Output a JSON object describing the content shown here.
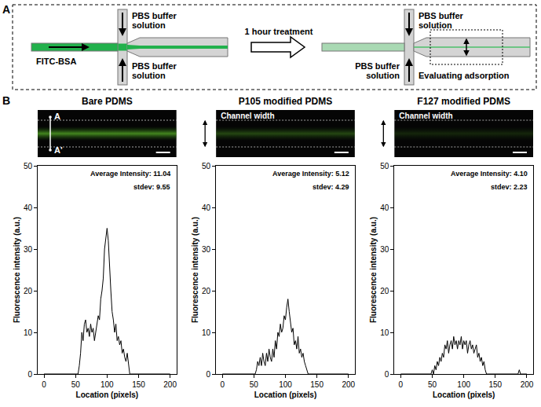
{
  "panel_a": {
    "label": "A",
    "inflow": "FITC-BSA",
    "buffer": "PBS buffer solution",
    "treatment": "1 hour treatment",
    "evaluation": "Evaluating adsorption"
  },
  "panel_b_label": "B",
  "chart_data": [
    {
      "type": "line",
      "title": "Bare PDMS",
      "image_annotations": [
        "A",
        "A'"
      ],
      "x_label": "Location (pixels)",
      "y_label": "Fluorescence intensity (a.u.)",
      "annotations": [
        "Average Intensity: 11.04",
        "stdev: 9.55"
      ],
      "color": "#000000",
      "xlim": [
        -10,
        210
      ],
      "xticks": [
        0,
        50,
        100,
        150,
        200
      ],
      "ylim": [
        0,
        50
      ],
      "yticks": [
        0,
        10,
        20,
        30,
        40,
        50
      ],
      "x": [
        0,
        2,
        4,
        6,
        8,
        10,
        12,
        14,
        16,
        18,
        20,
        22,
        24,
        26,
        28,
        30,
        32,
        34,
        36,
        38,
        40,
        42,
        44,
        46,
        48,
        50,
        52,
        54,
        56,
        58,
        60,
        62,
        64,
        66,
        68,
        70,
        72,
        74,
        76,
        78,
        80,
        82,
        84,
        86,
        88,
        90,
        92,
        94,
        96,
        98,
        100,
        102,
        104,
        106,
        108,
        110,
        112,
        114,
        116,
        118,
        120,
        122,
        124,
        126,
        128,
        130,
        132,
        134,
        136,
        138,
        140,
        142,
        144,
        146,
        148,
        150,
        152,
        154,
        156,
        158,
        160,
        162,
        164,
        166,
        168,
        170,
        172,
        174,
        176,
        178,
        180,
        182,
        184,
        186,
        188,
        190,
        192,
        194,
        196,
        198,
        200
      ],
      "values": [
        0,
        0,
        0,
        0,
        0,
        0,
        0,
        0,
        0,
        0,
        0,
        0,
        0,
        0,
        0,
        0,
        0,
        0,
        0,
        0,
        0,
        0,
        0,
        0,
        0,
        0,
        0,
        0,
        2,
        5,
        10,
        8,
        12,
        13,
        10,
        11,
        9,
        12,
        10,
        11,
        8,
        10,
        12,
        14,
        13,
        18,
        20,
        23,
        30,
        33,
        35,
        32,
        25,
        20,
        15,
        13,
        10,
        12,
        8,
        9,
        7,
        8,
        5,
        6,
        4,
        3,
        5,
        2,
        0,
        0,
        0,
        0,
        0,
        0,
        0,
        0,
        0,
        0,
        0,
        0,
        0,
        0,
        0,
        0,
        0,
        0,
        0,
        0,
        0,
        0,
        0,
        0,
        0,
        0,
        0,
        0,
        0,
        0,
        0,
        0,
        0
      ]
    },
    {
      "type": "line",
      "title": "P105 modified PDMS",
      "image_annotations": [
        "Channel width"
      ],
      "x_label": "Location (pixels)",
      "y_label": "Fluorescence intensity (a.u.)",
      "annotations": [
        "Average Intensity: 5.12",
        "stdev: 4.29"
      ],
      "color": "#000000",
      "xlim": [
        -10,
        210
      ],
      "xticks": [
        0,
        50,
        100,
        150,
        200
      ],
      "ylim": [
        0,
        50
      ],
      "yticks": [
        0,
        10,
        20,
        30,
        40,
        50
      ],
      "x": [
        0,
        2,
        4,
        6,
        8,
        10,
        12,
        14,
        16,
        18,
        20,
        22,
        24,
        26,
        28,
        30,
        32,
        34,
        36,
        38,
        40,
        42,
        44,
        46,
        48,
        50,
        52,
        54,
        56,
        58,
        60,
        62,
        64,
        66,
        68,
        70,
        72,
        74,
        76,
        78,
        80,
        82,
        84,
        86,
        88,
        90,
        92,
        94,
        96,
        98,
        100,
        102,
        104,
        106,
        108,
        110,
        112,
        114,
        116,
        118,
        120,
        122,
        124,
        126,
        128,
        130,
        132,
        134,
        136,
        138,
        140,
        142,
        144,
        146,
        148,
        150,
        152,
        154,
        156,
        158,
        160,
        162,
        164,
        166,
        168,
        170,
        172,
        174,
        176,
        178,
        180,
        182,
        184,
        186,
        188,
        190,
        192,
        194,
        196,
        198,
        200
      ],
      "values": [
        0,
        0,
        0,
        0,
        0,
        0,
        0,
        0,
        0,
        0,
        0,
        0,
        0,
        0,
        0,
        0,
        0,
        0,
        0,
        0,
        0,
        0,
        0,
        0,
        0,
        0,
        0,
        1,
        3,
        2,
        4,
        2,
        5,
        3,
        2,
        5,
        3,
        6,
        4,
        3,
        6,
        4,
        8,
        6,
        10,
        9,
        12,
        10,
        11,
        14,
        13,
        16,
        18,
        15,
        12,
        10,
        11,
        7,
        8,
        6,
        9,
        5,
        6,
        4,
        5,
        3,
        2,
        1,
        0,
        0,
        0,
        0,
        0,
        0,
        0,
        0,
        0,
        0,
        0,
        0,
        0,
        0,
        0,
        0,
        0,
        0,
        0,
        0,
        0,
        0,
        0,
        0,
        0,
        0,
        0,
        0,
        0,
        0,
        0,
        0,
        0
      ]
    },
    {
      "type": "line",
      "title": "F127 modified PDMS",
      "image_annotations": [
        "Channel width"
      ],
      "x_label": "Location (pixels)",
      "y_label": "Fluorescence intensity (a.u.)",
      "annotations": [
        "Average Intensity: 4.10",
        "stdev: 2.23"
      ],
      "color": "#000000",
      "xlim": [
        -10,
        210
      ],
      "xticks": [
        0,
        50,
        100,
        150,
        200
      ],
      "ylim": [
        0,
        50
      ],
      "yticks": [
        0,
        10,
        20,
        30,
        40,
        50
      ],
      "x": [
        0,
        2,
        4,
        6,
        8,
        10,
        12,
        14,
        16,
        18,
        20,
        22,
        24,
        26,
        28,
        30,
        32,
        34,
        36,
        38,
        40,
        42,
        44,
        46,
        48,
        50,
        52,
        54,
        56,
        58,
        60,
        62,
        64,
        66,
        68,
        70,
        72,
        74,
        76,
        78,
        80,
        82,
        84,
        86,
        88,
        90,
        92,
        94,
        96,
        98,
        100,
        102,
        104,
        106,
        108,
        110,
        112,
        114,
        116,
        118,
        120,
        122,
        124,
        126,
        128,
        130,
        132,
        134,
        136,
        138,
        140,
        142,
        144,
        146,
        148,
        150,
        152,
        154,
        156,
        158,
        160,
        162,
        164,
        166,
        168,
        170,
        172,
        174,
        176,
        178,
        180,
        182,
        184,
        186,
        188,
        190,
        192,
        194,
        196,
        198,
        200
      ],
      "values": [
        0,
        0,
        0,
        0,
        0,
        0,
        0,
        0,
        0,
        0,
        0,
        0,
        0,
        0,
        0,
        0,
        0,
        0,
        0,
        0,
        0,
        0,
        0,
        0,
        0,
        1,
        0,
        2,
        1,
        3,
        2,
        4,
        3,
        5,
        4,
        7,
        6,
        8,
        5,
        7,
        8,
        6,
        9,
        7,
        8,
        6,
        8,
        7,
        9,
        6,
        8,
        7,
        8,
        5,
        7,
        8,
        6,
        7,
        5,
        6,
        7,
        4,
        5,
        3,
        4,
        2,
        3,
        1,
        0,
        0,
        0,
        0,
        0,
        0,
        0,
        0,
        0,
        0,
        0,
        0,
        0,
        0,
        0,
        0,
        0,
        0,
        0,
        0,
        0,
        0,
        0,
        0,
        0,
        0,
        1,
        0,
        0,
        0,
        0,
        0,
        0
      ]
    }
  ]
}
